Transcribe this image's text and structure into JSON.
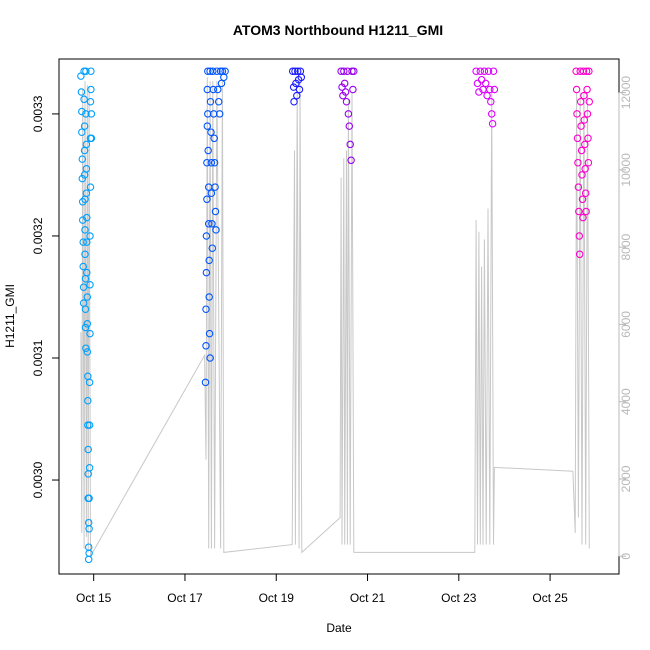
{
  "chart_data": {
    "type": "scatter",
    "title": "ATOM3 Northbound H1211_GMI",
    "xlabel": "Date",
    "ylabel": "H1211_GMI",
    "x_ticks": [
      "Oct 15",
      "Oct 17",
      "Oct 19",
      "Oct 21",
      "Oct 23",
      "Oct 25"
    ],
    "x_tick_days": [
      15,
      17,
      19,
      21,
      23,
      25
    ],
    "xlim_days": [
      14.24,
      26.51
    ],
    "y_ticks": [
      "0.0030",
      "0.0031",
      "0.0032",
      "0.0033"
    ],
    "y_tick_values": [
      0.003,
      0.0031,
      0.0032,
      0.0033
    ],
    "ylim": [
      0.002923,
      0.003345
    ],
    "y2_ticks": [
      "0",
      "2000",
      "4000",
      "6000",
      "8000",
      "10000",
      "12000"
    ],
    "y2_tick_values": [
      0,
      2000,
      4000,
      6000,
      8000,
      10000,
      12000
    ],
    "y2lim": [
      -460,
      12870
    ],
    "series": [
      {
        "color": "#00a0ff",
        "values": [
          [
            14.72,
            0.003331
          ],
          [
            14.73,
            0.003318
          ],
          [
            14.74,
            0.003302
          ],
          [
            14.74,
            0.003285
          ],
          [
            14.75,
            0.003263
          ],
          [
            14.75,
            0.003247
          ],
          [
            14.76,
            0.003228
          ],
          [
            14.76,
            0.003213
          ],
          [
            14.77,
            0.003195
          ],
          [
            14.77,
            0.003175
          ],
          [
            14.78,
            0.003158
          ],
          [
            14.78,
            0.003145
          ],
          [
            14.79,
            0.003335
          ],
          [
            14.79,
            0.003312
          ],
          [
            14.8,
            0.00329
          ],
          [
            14.8,
            0.00327
          ],
          [
            14.8,
            0.00325
          ],
          [
            14.81,
            0.00323
          ],
          [
            14.81,
            0.003205
          ],
          [
            14.81,
            0.003185
          ],
          [
            14.82,
            0.003165
          ],
          [
            14.82,
            0.00314
          ],
          [
            14.82,
            0.003125
          ],
          [
            14.83,
            0.003108
          ],
          [
            14.83,
            0.003335
          ],
          [
            14.83,
            0.0033
          ],
          [
            14.84,
            0.003275
          ],
          [
            14.84,
            0.003255
          ],
          [
            14.84,
            0.003235
          ],
          [
            14.85,
            0.003215
          ],
          [
            14.85,
            0.003195
          ],
          [
            14.85,
            0.00317
          ],
          [
            14.86,
            0.00315
          ],
          [
            14.86,
            0.003128
          ],
          [
            14.86,
            0.003105
          ],
          [
            14.87,
            0.003085
          ],
          [
            14.87,
            0.003065
          ],
          [
            14.87,
            0.003045
          ],
          [
            14.88,
            0.003025
          ],
          [
            14.88,
            0.003005
          ],
          [
            14.88,
            0.002985
          ],
          [
            14.89,
            0.002965
          ],
          [
            14.89,
            0.002945
          ],
          [
            14.89,
            0.002935
          ],
          [
            14.9,
            0.00294
          ],
          [
            14.9,
            0.00296
          ],
          [
            14.9,
            0.002985
          ],
          [
            14.91,
            0.00301
          ],
          [
            14.91,
            0.003045
          ],
          [
            14.91,
            0.00308
          ],
          [
            14.92,
            0.00312
          ],
          [
            14.92,
            0.00316
          ],
          [
            14.92,
            0.0032
          ],
          [
            14.93,
            0.00324
          ],
          [
            14.93,
            0.00328
          ],
          [
            14.93,
            0.00331
          ],
          [
            14.94,
            0.003335
          ],
          [
            14.94,
            0.00332
          ],
          [
            14.95,
            0.0033
          ],
          [
            14.95,
            0.00328
          ]
        ]
      },
      {
        "color": "#0055ff",
        "values": [
          [
            17.45,
            0.00308
          ],
          [
            17.46,
            0.00311
          ],
          [
            17.46,
            0.00314
          ],
          [
            17.47,
            0.00317
          ],
          [
            17.47,
            0.0032
          ],
          [
            17.48,
            0.00323
          ],
          [
            17.48,
            0.00326
          ],
          [
            17.49,
            0.00329
          ],
          [
            17.49,
            0.00332
          ],
          [
            17.5,
            0.003335
          ],
          [
            17.5,
            0.0033
          ],
          [
            17.51,
            0.00327
          ],
          [
            17.52,
            0.00324
          ],
          [
            17.52,
            0.00321
          ],
          [
            17.53,
            0.00318
          ],
          [
            17.53,
            0.00315
          ],
          [
            17.54,
            0.00312
          ],
          [
            17.55,
            0.0031
          ],
          [
            17.55,
            0.003335
          ],
          [
            17.56,
            0.00331
          ],
          [
            17.57,
            0.003285
          ],
          [
            17.58,
            0.00326
          ],
          [
            17.58,
            0.003235
          ],
          [
            17.59,
            0.00321
          ],
          [
            17.6,
            0.00319
          ],
          [
            17.61,
            0.003335
          ],
          [
            17.62,
            0.00332
          ],
          [
            17.63,
            0.0033
          ],
          [
            17.64,
            0.00328
          ],
          [
            17.65,
            0.00326
          ],
          [
            17.66,
            0.00324
          ],
          [
            17.67,
            0.00322
          ],
          [
            17.68,
            0.003205
          ],
          [
            17.7,
            0.003335
          ],
          [
            17.72,
            0.00332
          ],
          [
            17.74,
            0.00331
          ],
          [
            17.76,
            0.0033
          ],
          [
            17.78,
            0.003335
          ],
          [
            17.8,
            0.003325
          ],
          [
            17.82,
            0.003335
          ],
          [
            17.85,
            0.00333
          ],
          [
            17.88,
            0.003335
          ]
        ]
      },
      {
        "color": "#1a1aff",
        "values": [
          [
            19.36,
            0.003335
          ],
          [
            19.38,
            0.003322
          ],
          [
            19.39,
            0.00331
          ],
          [
            19.41,
            0.003335
          ],
          [
            19.43,
            0.003325
          ],
          [
            19.45,
            0.003315
          ],
          [
            19.47,
            0.003335
          ],
          [
            19.49,
            0.003328
          ],
          [
            19.51,
            0.00332
          ],
          [
            19.53,
            0.003335
          ],
          [
            19.55,
            0.00333
          ]
        ]
      },
      {
        "color": "#9900ee",
        "values": [
          [
            20.42,
            0.003335
          ],
          [
            20.44,
            0.003322
          ],
          [
            20.46,
            0.003315
          ],
          [
            20.48,
            0.003335
          ],
          [
            20.5,
            0.003325
          ],
          [
            20.52,
            0.003318
          ],
          [
            20.54,
            0.00331
          ],
          [
            20.56,
            0.003335
          ],
          [
            20.58,
            0.0033
          ],
          [
            20.6,
            0.00329
          ],
          [
            20.62,
            0.003275
          ],
          [
            20.64,
            0.003262
          ],
          [
            20.66,
            0.003335
          ],
          [
            20.68,
            0.00332
          ],
          [
            20.7,
            0.003335
          ]
        ]
      },
      {
        "color": "#dd00ff",
        "values": [
          [
            23.38,
            0.003335
          ],
          [
            23.41,
            0.003325
          ],
          [
            23.44,
            0.003318
          ],
          [
            23.47,
            0.003335
          ],
          [
            23.5,
            0.003328
          ],
          [
            23.53,
            0.00332
          ],
          [
            23.56,
            0.003335
          ],
          [
            23.59,
            0.003325
          ],
          [
            23.62,
            0.003315
          ],
          [
            23.65,
            0.003335
          ],
          [
            23.68,
            0.00332
          ],
          [
            23.7,
            0.00331
          ],
          [
            23.72,
            0.0033
          ],
          [
            23.74,
            0.003292
          ],
          [
            23.76,
            0.003335
          ],
          [
            23.78,
            0.00332
          ]
        ]
      },
      {
        "color": "#ff00cc",
        "values": [
          [
            25.57,
            0.003335
          ],
          [
            25.58,
            0.00332
          ],
          [
            25.59,
            0.0033
          ],
          [
            25.6,
            0.00328
          ],
          [
            25.61,
            0.00326
          ],
          [
            25.62,
            0.00324
          ],
          [
            25.63,
            0.00322
          ],
          [
            25.64,
            0.0032
          ],
          [
            25.65,
            0.003185
          ],
          [
            25.66,
            0.003335
          ],
          [
            25.67,
            0.00331
          ],
          [
            25.68,
            0.00329
          ],
          [
            25.69,
            0.00327
          ],
          [
            25.7,
            0.00325
          ],
          [
            25.71,
            0.00323
          ],
          [
            25.72,
            0.003215
          ],
          [
            25.73,
            0.003335
          ],
          [
            25.74,
            0.003315
          ],
          [
            25.75,
            0.003295
          ],
          [
            25.76,
            0.003275
          ],
          [
            25.77,
            0.003255
          ],
          [
            25.78,
            0.003235
          ],
          [
            25.79,
            0.00322
          ],
          [
            25.8,
            0.003335
          ],
          [
            25.81,
            0.00332
          ],
          [
            25.82,
            0.0033
          ],
          [
            25.83,
            0.00328
          ],
          [
            25.84,
            0.00326
          ],
          [
            25.85,
            0.003335
          ],
          [
            25.86,
            0.00331
          ]
        ]
      }
    ],
    "altitude_line": {
      "color": "#c8c8c8",
      "axis": "right",
      "values": [
        [
          14.72,
          5800
        ],
        [
          14.74,
          600
        ],
        [
          14.76,
          12100
        ],
        [
          14.79,
          200
        ],
        [
          14.81,
          12300
        ],
        [
          14.84,
          500
        ],
        [
          14.86,
          12200
        ],
        [
          14.88,
          100
        ],
        [
          14.9,
          12150
        ],
        [
          14.93,
          0
        ],
        [
          17.43,
          5200
        ],
        [
          17.46,
          2500
        ],
        [
          17.49,
          12400
        ],
        [
          17.52,
          200
        ],
        [
          17.55,
          12300
        ],
        [
          17.58,
          200
        ],
        [
          17.61,
          12300
        ],
        [
          17.65,
          200
        ],
        [
          17.7,
          12300
        ],
        [
          17.78,
          200
        ],
        [
          17.82,
          12300
        ],
        [
          17.85,
          100
        ],
        [
          19.35,
          300
        ],
        [
          19.4,
          10500
        ],
        [
          19.42,
          300
        ],
        [
          19.46,
          12000
        ],
        [
          19.5,
          200
        ],
        [
          19.52,
          12300
        ],
        [
          19.56,
          100
        ],
        [
          20.4,
          1000
        ],
        [
          20.42,
          9800
        ],
        [
          20.44,
          300
        ],
        [
          20.48,
          10300
        ],
        [
          20.5,
          300
        ],
        [
          20.54,
          10500
        ],
        [
          20.56,
          300
        ],
        [
          20.58,
          11800
        ],
        [
          20.62,
          300
        ],
        [
          20.66,
          12000
        ],
        [
          20.7,
          100
        ],
        [
          23.35,
          100
        ],
        [
          23.38,
          8700
        ],
        [
          23.41,
          300
        ],
        [
          23.44,
          8400
        ],
        [
          23.47,
          300
        ],
        [
          23.5,
          7500
        ],
        [
          23.53,
          300
        ],
        [
          23.56,
          8200
        ],
        [
          23.6,
          300
        ],
        [
          23.64,
          9000
        ],
        [
          23.68,
          300
        ],
        [
          23.72,
          12000
        ],
        [
          23.76,
          300
        ],
        [
          23.78,
          2300
        ],
        [
          25.5,
          2200
        ],
        [
          25.55,
          600
        ],
        [
          25.58,
          12000
        ],
        [
          25.62,
          1000
        ],
        [
          25.66,
          12000
        ],
        [
          25.7,
          300
        ],
        [
          25.74,
          12000
        ],
        [
          25.78,
          300
        ],
        [
          25.82,
          12000
        ],
        [
          25.86,
          200
        ]
      ]
    },
    "grid": false,
    "legend": "none"
  }
}
